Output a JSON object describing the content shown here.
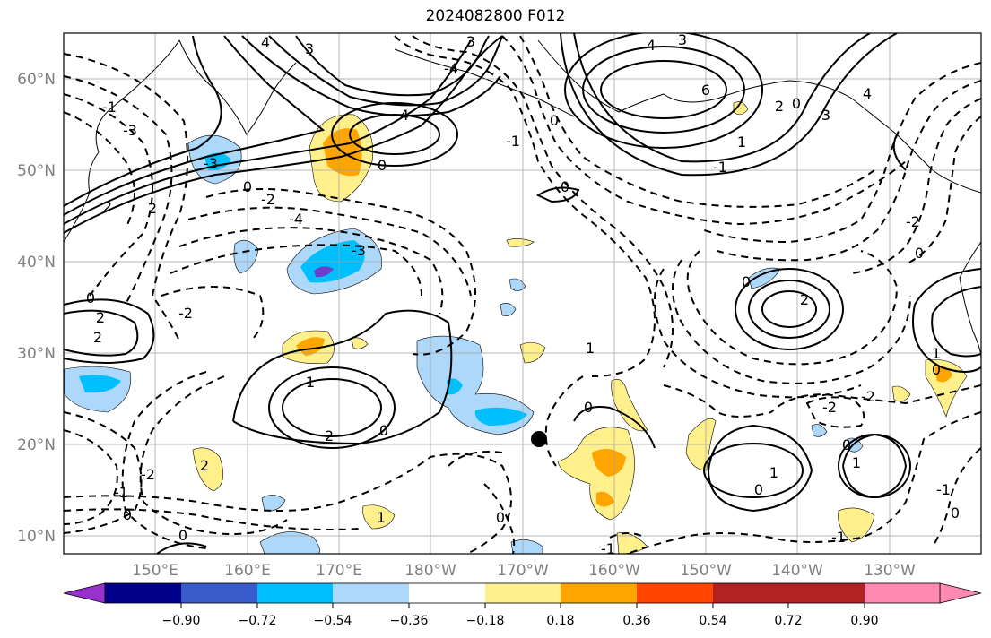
{
  "title": "2024082800 F012",
  "map": {
    "lat_labels": [
      "60°N",
      "50°N",
      "40°N",
      "30°N",
      "20°N",
      "10°N"
    ],
    "lon_labels": [
      "150°E",
      "160°E",
      "170°E",
      "180°W",
      "170°W",
      "160°W",
      "150°W",
      "140°W",
      "130°W"
    ],
    "contour_labels": [
      "4",
      "3",
      "-4",
      "3",
      "4",
      "3",
      "6",
      "4",
      "2",
      "3",
      "-3",
      "-3",
      "4",
      "0",
      "0",
      "2",
      "-2",
      "2",
      "-4",
      "-3",
      "0",
      "0",
      "2",
      "2",
      "0",
      "0",
      "1",
      "1",
      "2",
      "0",
      "0",
      "1",
      "0",
      "-2",
      "2",
      "-2",
      "0",
      "-1",
      "-1",
      "0",
      "1",
      "1",
      "0",
      "-1",
      "-2",
      "-2",
      "0",
      "1",
      "-1",
      "0",
      "-1",
      "2",
      "-2",
      "1",
      "-1",
      "-1",
      "0",
      "0",
      "0"
    ],
    "marker": "filled-circle",
    "colors": {
      "grid": "#a0a0a0",
      "tick_label": "#808080",
      "contour": "#000000"
    }
  },
  "colorbar": {
    "tick_labels": [
      "−0.90",
      "−0.72",
      "−0.54",
      "−0.36",
      "−0.18",
      "0.18",
      "0.36",
      "0.54",
      "0.72",
      "0.90"
    ],
    "colors": [
      "#9932cc",
      "#00008b",
      "#3a5bcc",
      "#00bfff",
      "#add8fa",
      "#ffffff",
      "#fff08c",
      "#ffa500",
      "#ff4500",
      "#b22222",
      "#ff89b0"
    ]
  }
}
